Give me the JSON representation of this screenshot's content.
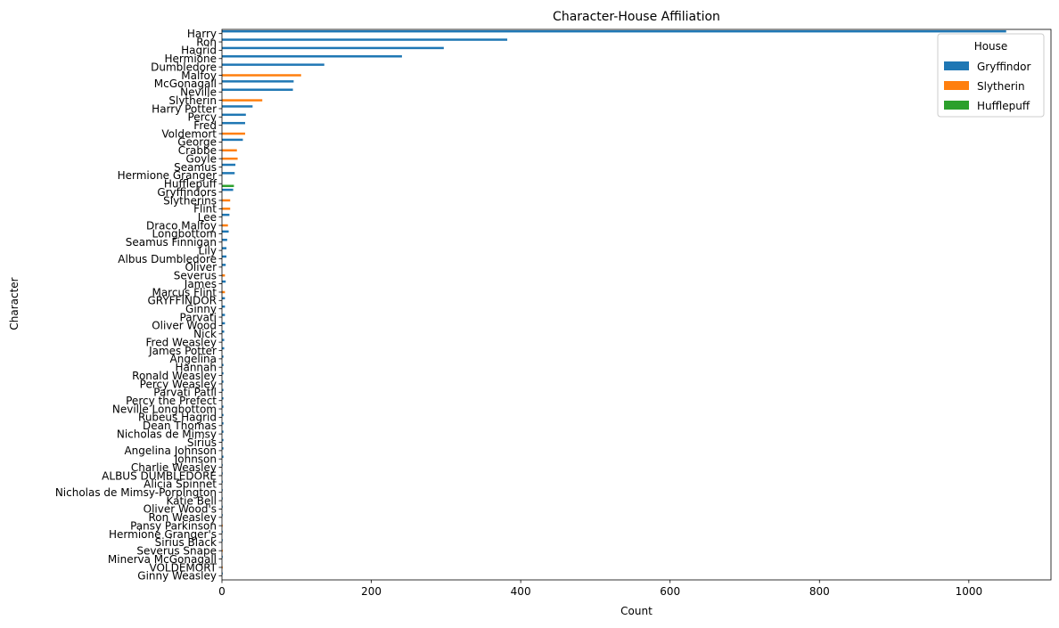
{
  "chart_data": {
    "type": "bar",
    "orientation": "horizontal",
    "title": "Character-House Affiliation",
    "xlabel": "Count",
    "ylabel": "Character",
    "xlim": [
      0,
      1110
    ],
    "x_ticks": [
      0,
      200,
      400,
      600,
      800,
      1000
    ],
    "grid": false,
    "legend": {
      "title": "House",
      "placement": "top-right",
      "entries": [
        "Gryffindor",
        "Slytherin",
        "Hufflepuff"
      ]
    },
    "colors": {
      "Gryffindor": "#1f77b4",
      "Slytherin": "#ff7f0e",
      "Hufflepuff": "#2ca02c"
    },
    "categories": [
      "Harry",
      "Ron",
      "Hagrid",
      "Hermione",
      "Dumbledore",
      "Malfoy",
      "McGonagall",
      "Neville",
      "Slytherin",
      "Harry Potter",
      "Percy",
      "Fred",
      "Voldemort",
      "George",
      "Crabbe",
      "Goyle",
      "Seamus",
      "Hermione Granger",
      "Hufflepuff",
      "Gryffindors",
      "Slytherins",
      "Flint",
      "Lee",
      "Draco Malfoy",
      "Longbottom",
      "Seamus Finnigan",
      "Lily",
      "Albus Dumbledore",
      "Oliver",
      "Severus",
      "James",
      "Marcus Flint",
      "GRYFFINDOR",
      "Ginny",
      "Parvati",
      "Oliver Wood",
      "Nick",
      "Fred Weasley",
      "James Potter",
      "Angelina",
      "Hannah",
      "Ronald Weasley",
      "Percy Weasley",
      "Parvati Patil",
      "Percy the Prefect",
      "Neville Longbottom",
      "Rubeus Hagrid",
      "Dean Thomas",
      "Nicholas de Mimsy",
      "Sirius",
      "Angelina Johnson",
      "Johnson",
      "Charlie Weasley",
      "ALBUS DUMBLEDORE",
      "Alicia Spinnet",
      "Nicholas de Mimsy-Porpington",
      "Katie Bell",
      "Oliver Wood's",
      "Ron Weasley",
      "Pansy Parkinson",
      "Hermione Granger's",
      "Sirius Black",
      "Severus Snape",
      "Minerva McGonagall",
      "VOLDEMORT",
      "Ginny Weasley"
    ],
    "series": [
      {
        "name": "Gryffindor",
        "values": [
          1050,
          382,
          297,
          241,
          137,
          0,
          96,
          95,
          0,
          41,
          32,
          31,
          0,
          28,
          0,
          0,
          18,
          17,
          0,
          15,
          0,
          0,
          10,
          0,
          9,
          7,
          6,
          6,
          5,
          0,
          5,
          0,
          4,
          4,
          4,
          4,
          3,
          3,
          3,
          2,
          2,
          2,
          2,
          2,
          2,
          2,
          2,
          2,
          2,
          2,
          2,
          2,
          1,
          1,
          1,
          1,
          1,
          1,
          1,
          0,
          1,
          1,
          0,
          1,
          0,
          1
        ]
      },
      {
        "name": "Slytherin",
        "values": [
          0,
          0,
          0,
          0,
          0,
          106,
          0,
          0,
          54,
          0,
          0,
          0,
          31,
          0,
          20,
          21,
          0,
          0,
          0,
          0,
          11,
          11,
          0,
          8,
          0,
          0,
          0,
          0,
          0,
          4,
          0,
          4,
          0,
          0,
          0,
          0,
          0,
          0,
          0,
          0,
          0,
          0,
          0,
          0,
          0,
          0,
          0,
          0,
          0,
          0,
          0,
          0,
          0,
          0,
          0,
          0,
          0,
          0,
          0,
          1,
          0,
          0,
          1,
          0,
          1,
          0
        ]
      },
      {
        "name": "Hufflepuff",
        "values": [
          0,
          0,
          0,
          0,
          0,
          0,
          0,
          0,
          0,
          0,
          0,
          0,
          0,
          0,
          0,
          0,
          0,
          0,
          16,
          0,
          0,
          0,
          0,
          0,
          0,
          0,
          0,
          0,
          0,
          0,
          0,
          0,
          0,
          0,
          0,
          0,
          0,
          0,
          0,
          0,
          0,
          0,
          0,
          0,
          0,
          0,
          0,
          0,
          0,
          0,
          0,
          0,
          0,
          0,
          0,
          0,
          0,
          0,
          0,
          0,
          0,
          0,
          0,
          0,
          0,
          0
        ]
      }
    ]
  }
}
